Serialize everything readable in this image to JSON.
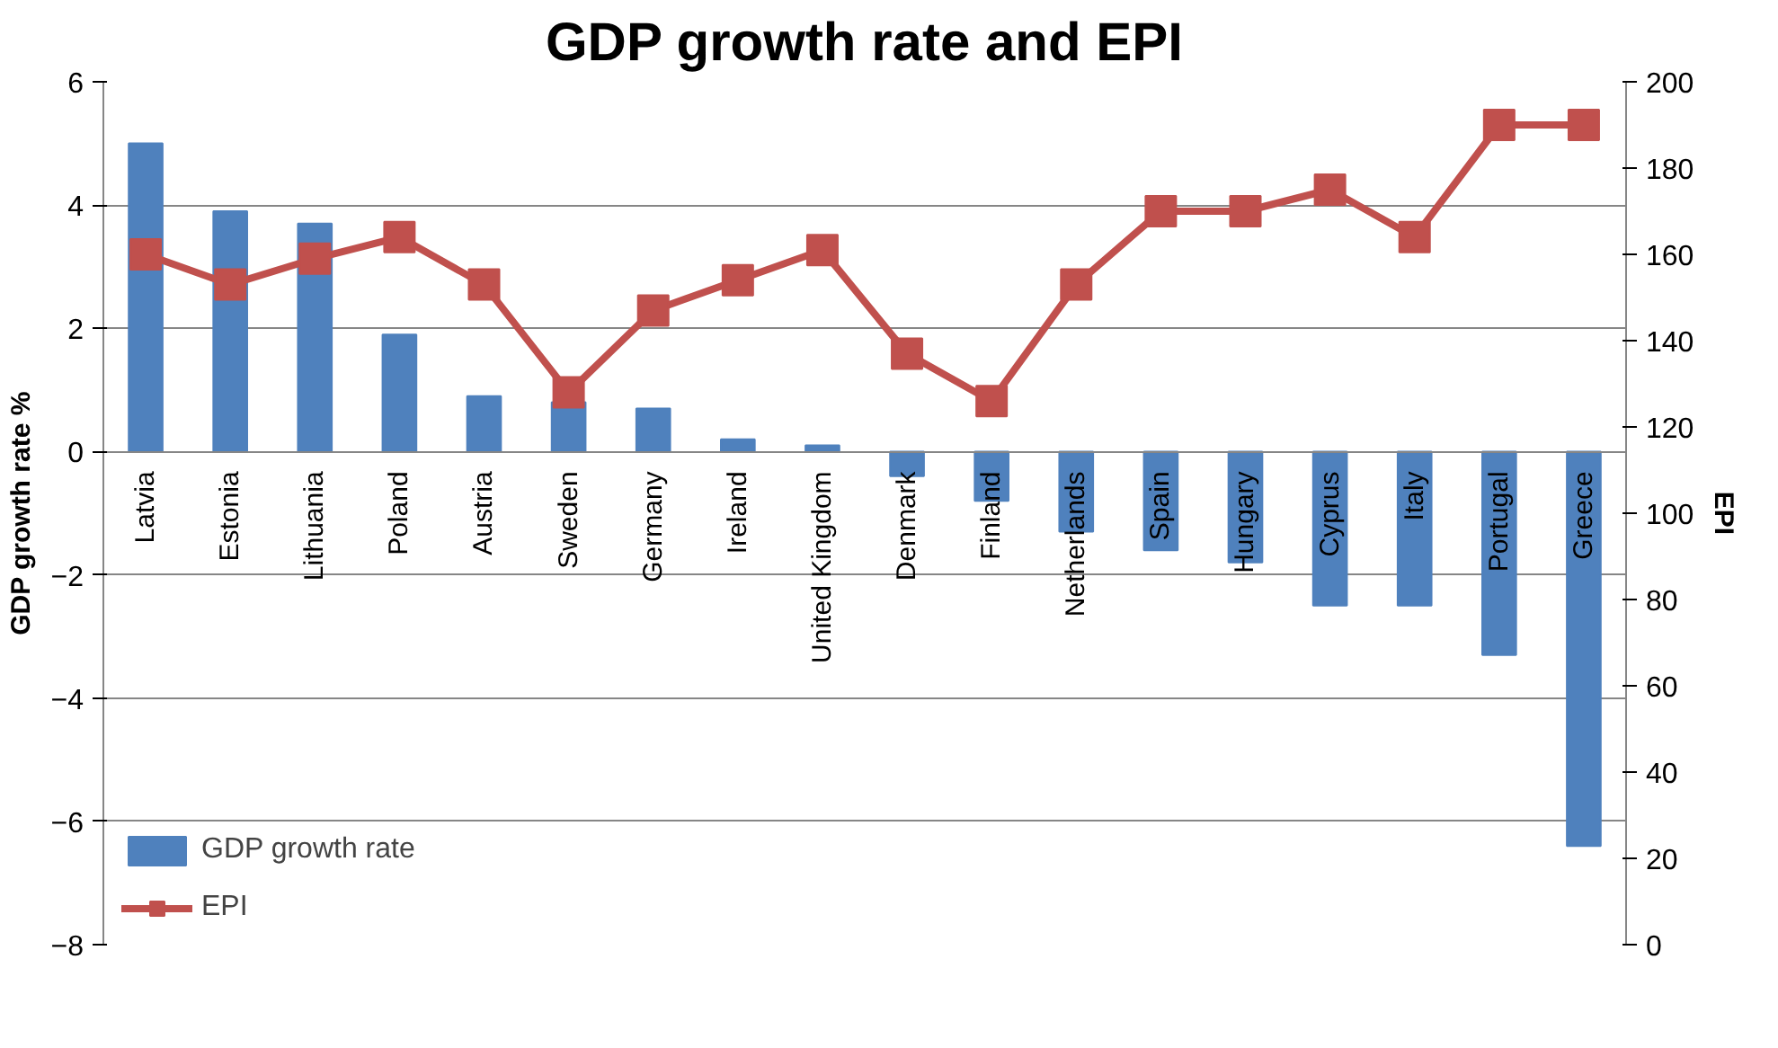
{
  "chart_data": {
    "type": "bar",
    "title": "GDP growth rate and EPI",
    "ylabel": "GDP growth rate %",
    "y2label": "EPI",
    "categories": [
      "Latvia",
      "Estonia",
      "Lithuania",
      "Poland",
      "Austria",
      "Sweden",
      "Germany",
      "Ireland",
      "United Kingdom",
      "Denmark",
      "Finland",
      "Netherlands",
      "Spain",
      "Hungary",
      "Cyprus",
      "Italy",
      "Portugal",
      "Greece"
    ],
    "series": [
      {
        "name": "GDP growth rate",
        "color": "#4f81bd",
        "values": [
          5.0,
          3.9,
          3.7,
          1.9,
          0.9,
          0.8,
          0.7,
          0.2,
          0.1,
          -0.4,
          -0.8,
          -1.3,
          -1.6,
          -1.8,
          -2.5,
          -2.5,
          -3.3,
          -6.4
        ]
      },
      {
        "name": "EPI",
        "type": "line",
        "axis": "y2",
        "color": "#c0504d",
        "marker": "square",
        "values": [
          160,
          153,
          159,
          164,
          153,
          128,
          147,
          154,
          161,
          137,
          126,
          153,
          170,
          170,
          175,
          164,
          190,
          190
        ]
      }
    ],
    "ylim": [
      -8,
      6
    ],
    "yticks": [
      -8,
      -6,
      -4,
      -2,
      0,
      2,
      4,
      6
    ],
    "y2lim": [
      0,
      200
    ],
    "y2ticks": [
      0,
      20,
      40,
      60,
      80,
      100,
      120,
      140,
      160,
      180,
      200
    ],
    "grid": "y",
    "legend": "bottom left"
  }
}
